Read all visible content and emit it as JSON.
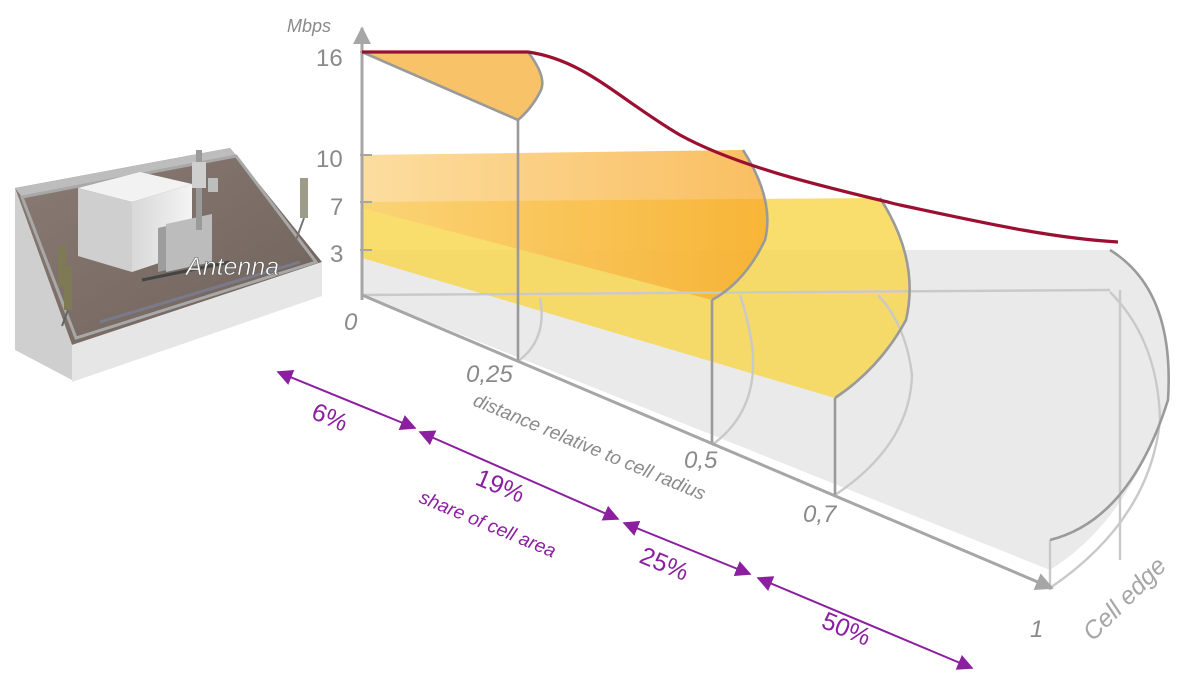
{
  "y_axis": {
    "unit": "Mbps",
    "ticks": [
      "16",
      "10",
      "7",
      "3"
    ]
  },
  "x_axis": {
    "label": "distance relative to cell radius",
    "origin": "0",
    "ticks": [
      "0,25",
      "0,5",
      "0,7",
      "1"
    ],
    "end_label": "Cell edge"
  },
  "antenna_label": "Antenna",
  "area_share": {
    "label": "share of cell area",
    "segments": [
      "6%",
      "19%",
      "25%",
      "50%"
    ]
  },
  "colors": {
    "curve": "#9b1030",
    "zone_orange": "#f7a523",
    "zone_yellow": "#f8d548",
    "zone_grey": "#d9d9d9",
    "share": "#8b1fa0"
  },
  "chart_data": {
    "type": "line",
    "title": "",
    "xlabel": "distance relative to cell radius",
    "ylabel": "Mbps",
    "x": [
      0,
      0.25,
      0.5,
      0.7,
      1
    ],
    "series": [
      {
        "values": [
          16,
          16,
          10,
          7,
          3
        ]
      }
    ],
    "area_share_percent": [
      6,
      19,
      25,
      50
    ]
  }
}
